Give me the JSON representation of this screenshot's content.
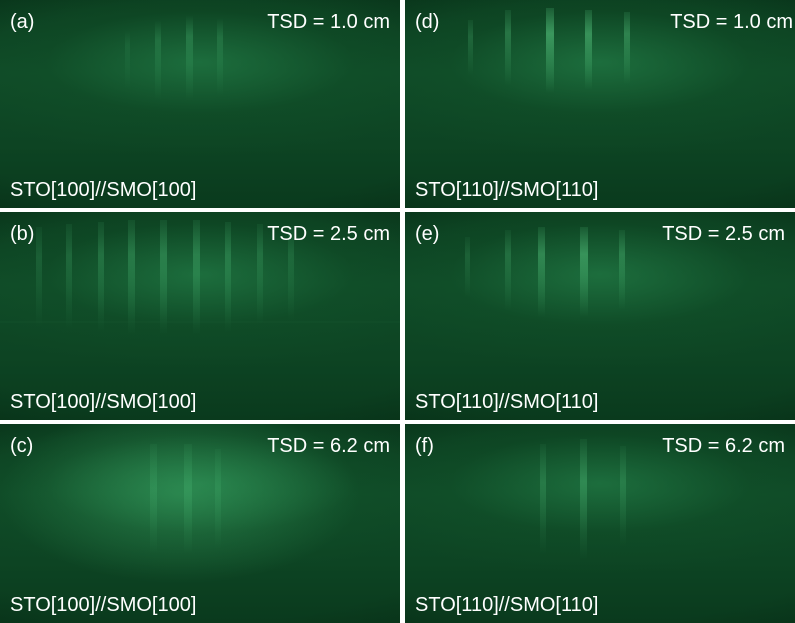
{
  "panels": [
    {
      "id": "a",
      "letter": "(a)",
      "tsd": "TSD = 1.0 cm",
      "orientation": "STO[100]//SMO[100]"
    },
    {
      "id": "b",
      "letter": "(b)",
      "tsd": "TSD = 2.5 cm",
      "orientation": "STO[100]//SMO[100]"
    },
    {
      "id": "c",
      "letter": "(c)",
      "tsd": "TSD = 6.2 cm",
      "orientation": "STO[100]//SMO[100]"
    },
    {
      "id": "d",
      "letter": "(d)",
      "tsd": "TSD = 1.0 cm",
      "orientation": "STO[110]//SMO[110]"
    },
    {
      "id": "e",
      "letter": "(e)",
      "tsd": "TSD = 2.5 cm",
      "orientation": "STO[110]//SMO[110]"
    },
    {
      "id": "f",
      "letter": "(f)",
      "tsd": "TSD = 6.2 cm",
      "orientation": "STO[110]//SMO[110]"
    }
  ],
  "colors": {
    "screen_green": "#0f4a27",
    "streak_green": "#3fae6a",
    "label_text": "#ffffff"
  }
}
